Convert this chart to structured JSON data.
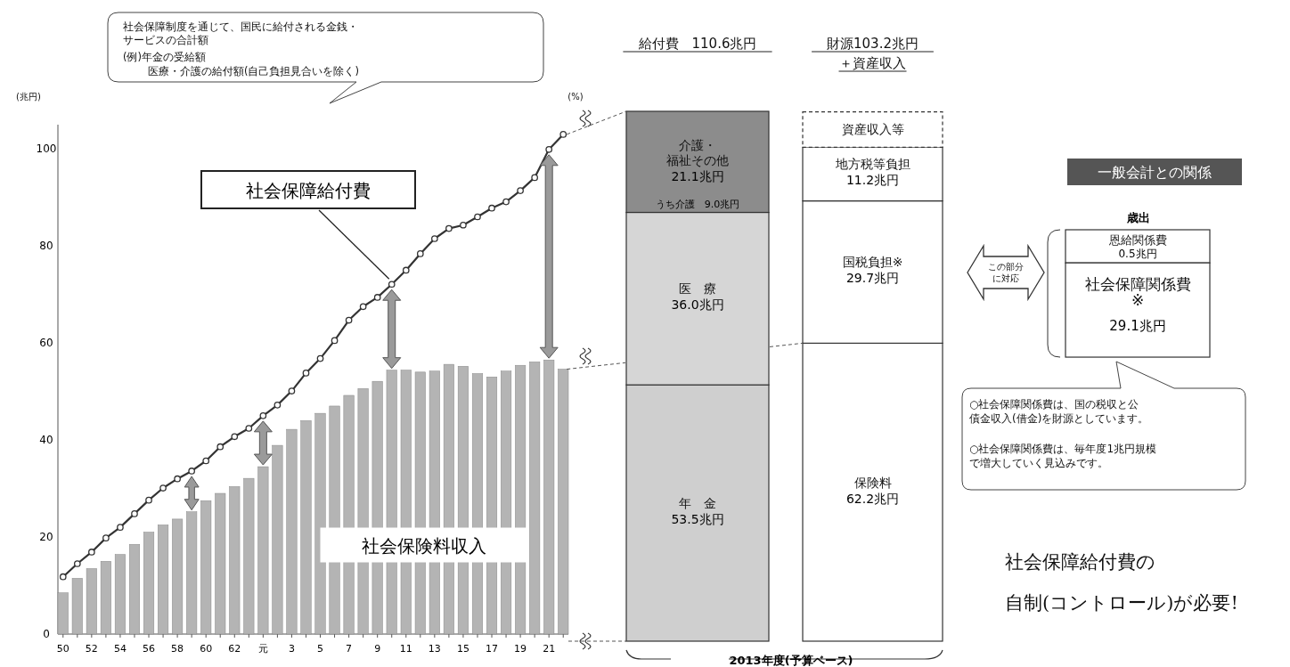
{
  "chart_data": [
    {
      "type": "bar",
      "ylabel": "(兆円)",
      "categories": [
        "50",
        null,
        "52",
        null,
        "54",
        null,
        "56",
        null,
        "58",
        null,
        "60",
        null,
        "62",
        null,
        "元",
        null,
        "3",
        null,
        "5",
        null,
        "7",
        null,
        "9",
        null,
        "11",
        null,
        "13",
        null,
        "15",
        null,
        "17",
        null,
        "19",
        null,
        "21",
        null
      ],
      "ylim": [
        0,
        105
      ],
      "yticks": [
        0,
        20,
        40,
        60,
        80,
        100
      ],
      "marker": "circle",
      "series": [
        {
          "name": "社会保険料収入",
          "type": "bar",
          "color": "#b4b4b4",
          "values": [
            8.5,
            11.5,
            13.5,
            15,
            16.4,
            18.5,
            21,
            22.5,
            23.7,
            25.2,
            27.5,
            29,
            30.4,
            32.1,
            34.5,
            38.9,
            42.2,
            44,
            45.5,
            47,
            49.2,
            50.6,
            52.1,
            54.4,
            54.4,
            54,
            54.2,
            55.6,
            55.2,
            53.7,
            53,
            54.2,
            55.4,
            56.1,
            56.5,
            54.6
          ]
        },
        {
          "name": "社会保障給付費",
          "type": "line",
          "color": "#333333",
          "values": [
            11.8,
            14.5,
            16.9,
            19.8,
            22,
            24.8,
            27.6,
            30.1,
            32,
            33.6,
            35.7,
            38.6,
            40.7,
            42.4,
            45,
            47.2,
            50.1,
            53.8,
            56.8,
            60.5,
            64.7,
            67.5,
            69.4,
            72.1,
            75,
            78.4,
            81.5,
            83.6,
            84.3,
            86,
            87.8,
            89.1,
            91.4,
            94.1,
            99.9,
            103
          ]
        }
      ],
      "annotations": [
        "社会保障制度を通じて、国民に給付される金銭・サービスの合計額",
        "(例)年金の受給額",
        "医療・介護の給付額(自己負担見合いを除く)",
        "(%)"
      ]
    },
    {
      "type": "bar",
      "stacked": true,
      "categories": [
        "給付費　110.6兆円",
        "財源103.2兆円＋資産収入"
      ],
      "series": [
        {
          "name": "年　金",
          "color": "#cfcfcf",
          "values": [
            53.5,
            null
          ],
          "value_labels": [
            "53.5兆円",
            null
          ]
        },
        {
          "name": "保険料",
          "color": "#ffffff",
          "values": [
            null,
            62.2
          ],
          "value_labels": [
            null,
            "62.2兆円"
          ]
        },
        {
          "name": "医　療",
          "color": "#d6d6d6",
          "values": [
            36.0,
            null
          ],
          "value_labels": [
            "36.0兆円",
            null
          ]
        },
        {
          "name": "国税負担※",
          "color": "#ffffff",
          "values": [
            null,
            29.7
          ],
          "value_labels": [
            null,
            "29.7兆円"
          ]
        },
        {
          "name": "介護・福祉その他",
          "color": "#8c8c8c",
          "values": [
            21.1,
            null
          ],
          "value_labels": [
            "21.1兆円",
            null
          ]
        },
        {
          "name": "地方税等負担",
          "color": "#ffffff",
          "values": [
            null,
            11.2
          ],
          "value_labels": [
            null,
            "11.2兆円"
          ]
        },
        {
          "name": "資産収入等",
          "color": "#ffffff",
          "line_style": "dashed",
          "values": [
            null,
            7.4
          ],
          "value_labels": [
            null,
            null
          ]
        }
      ],
      "annotations": [
        "うち介護　9.0兆円",
        "2013年度(予算ベース)"
      ]
    },
    {
      "type": "other",
      "title": "一般会計との関係",
      "subtitle": "歳出",
      "categories": [
        "恩給関係費",
        "社会保障関係費\n※"
      ],
      "values": [
        0.5,
        29.1
      ],
      "value_labels": [
        "0.5兆円",
        "29.1兆円"
      ],
      "annotations": [
        "この部分に対応",
        "○社会保障関係費は、国の税収と公債金収入(借金)を財源としています。",
        "○社会保障関係費は、毎年度1兆円規模で増大していく見込みです。",
        "社会保障給付費の自制(コントロール)が必要!"
      ]
    }
  ]
}
